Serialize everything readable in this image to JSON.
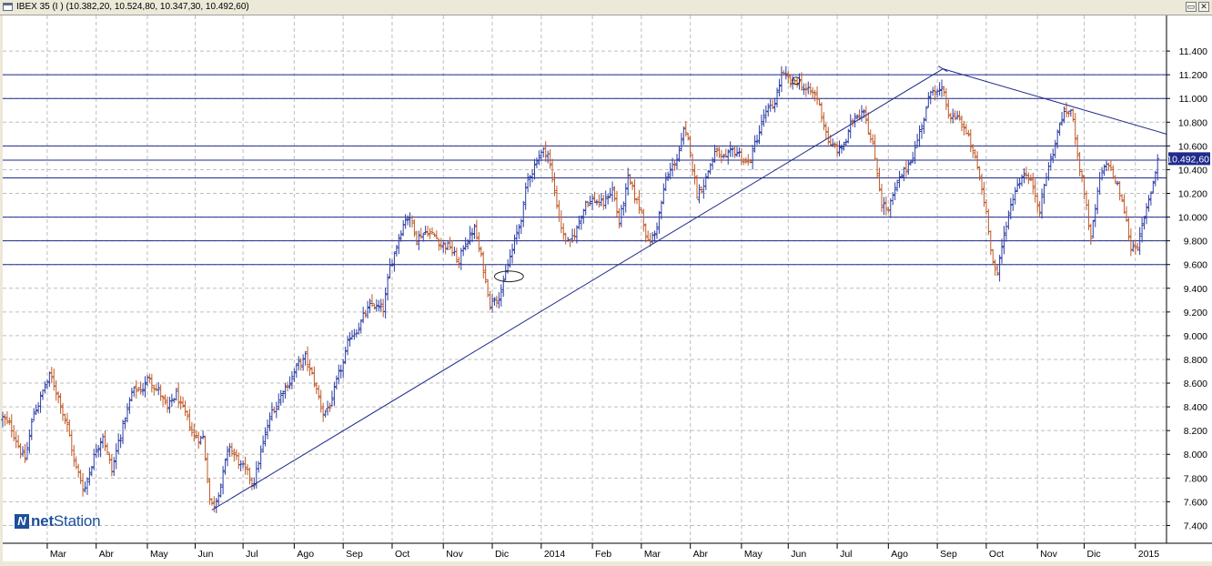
{
  "window": {
    "title": "IBEX 35 (I ) (10.382,20, 10.524,80, 10.347,30, 10.492,60)",
    "restore_glyph": "▭",
    "close_glyph": "✕"
  },
  "logo": {
    "prefix": "net",
    "suffix": "Station",
    "mark": "N"
  },
  "colors": {
    "up": "#2c3ea5",
    "down": "#c05a28",
    "line": "#1f2a8c",
    "grid": "#bdbdbd",
    "price_label_bg": "#1f2a8c"
  },
  "chart_data": {
    "type": "ohlc",
    "title": "IBEX 35 (I ) (10.382,20, 10.524,80, 10.347,30, 10.492,60)",
    "last_price": "10.492,60",
    "ylim": [
      7250,
      11700
    ],
    "y_ticks": [
      7400,
      7600,
      7800,
      8000,
      8200,
      8400,
      8600,
      8800,
      9000,
      9200,
      9400,
      9600,
      9800,
      10000,
      10200,
      10400,
      10600,
      10800,
      11000,
      11200,
      11400
    ],
    "y_tick_labels": [
      "7.400",
      "7.600",
      "7.800",
      "8.000",
      "8.200",
      "8.400",
      "8.600",
      "8.800",
      "9.000",
      "9.200",
      "9.400",
      "9.600",
      "9.800",
      "10.000",
      "10.200",
      "10.400",
      "10.600",
      "10.800",
      "11.000",
      "11.200",
      "11.400"
    ],
    "x_labels": [
      "Mar",
      "Abr",
      "May",
      "Jun",
      "Jul",
      "Ago",
      "Sep",
      "Oct",
      "Nov",
      "Dic",
      "2014",
      "Feb",
      "Mar",
      "Abr",
      "May",
      "Jun",
      "Jul",
      "Ago",
      "Sep",
      "Oct",
      "Nov",
      "Dic",
      "2015"
    ],
    "x_label_positions_week": [
      4.0,
      8.4,
      13.0,
      17.3,
      21.6,
      26.2,
      30.6,
      35.0,
      39.6,
      44.0,
      48.4,
      53.0,
      57.4,
      61.8,
      66.4,
      70.6,
      75.0,
      79.6,
      84.0,
      88.4,
      93.0,
      97.2,
      101.8
    ],
    "x_range_weeks": [
      0,
      104.6
    ],
    "horizontal_levels": [
      9600,
      9800,
      10000,
      10330,
      10480,
      10600,
      11000,
      11200
    ],
    "trendlines": [
      {
        "name": "support",
        "from": [
          18.8,
          7530
        ],
        "to": [
          84.5,
          11250
        ]
      },
      {
        "name": "resistance",
        "from": [
          84.5,
          11250
        ],
        "to": [
          104.6,
          10700
        ]
      }
    ],
    "annotations": [
      {
        "shape": "ellipse",
        "at": [
          45.5,
          9500
        ],
        "rx_weeks": 1.3,
        "ry_price": 45
      },
      {
        "shape": "ellipse",
        "at": [
          71.3,
          11150
        ],
        "rx_weeks": 0.35,
        "ry_price": 30
      }
    ],
    "anchors": [
      [
        0,
        8300
      ],
      [
        1.2,
        8150
      ],
      [
        2,
        7950
      ],
      [
        2.8,
        8350
      ],
      [
        3.5,
        8500
      ],
      [
        4.2,
        8650
      ],
      [
        5,
        8500
      ],
      [
        5.8,
        8250
      ],
      [
        6.5,
        7900
      ],
      [
        7.3,
        7700
      ],
      [
        8.2,
        8000
      ],
      [
        9,
        8200
      ],
      [
        9.8,
        7850
      ],
      [
        10.4,
        8100
      ],
      [
        11,
        8300
      ],
      [
        11.6,
        8500
      ],
      [
        12.4,
        8550
      ],
      [
        13.2,
        8650
      ],
      [
        14,
        8550
      ],
      [
        14.8,
        8350
      ],
      [
        15.6,
        8500
      ],
      [
        16.4,
        8300
      ],
      [
        17.2,
        8150
      ],
      [
        18,
        8150
      ],
      [
        18.6,
        7650
      ],
      [
        18.9,
        7550
      ],
      [
        19.5,
        7750
      ],
      [
        20.4,
        8050
      ],
      [
        21.4,
        7900
      ],
      [
        22,
        7800
      ],
      [
        22.5,
        7750
      ],
      [
        23.3,
        8050
      ],
      [
        24.2,
        8350
      ],
      [
        25.2,
        8550
      ],
      [
        26.2,
        8700
      ],
      [
        27.2,
        8800
      ],
      [
        28,
        8600
      ],
      [
        28.8,
        8350
      ],
      [
        29.6,
        8450
      ],
      [
        30.6,
        8750
      ],
      [
        31.3,
        9000
      ],
      [
        32.3,
        9150
      ],
      [
        33.3,
        9250
      ],
      [
        34.2,
        9200
      ],
      [
        34.8,
        9550
      ],
      [
        35.6,
        9850
      ],
      [
        36.3,
        10050
      ],
      [
        37.2,
        9850
      ],
      [
        38.2,
        9900
      ],
      [
        39.2,
        9800
      ],
      [
        40.2,
        9750
      ],
      [
        41,
        9600
      ],
      [
        41.6,
        9800
      ],
      [
        42.4,
        9900
      ],
      [
        43.2,
        9550
      ],
      [
        43.8,
        9300
      ],
      [
        44.4,
        9350
      ],
      [
        45,
        9450
      ],
      [
        45.6,
        9650
      ],
      [
        46.4,
        9900
      ],
      [
        47.2,
        10300
      ],
      [
        48.2,
        10550
      ],
      [
        49,
        10550
      ],
      [
        49.6,
        10200
      ],
      [
        50.4,
        9850
      ],
      [
        51,
        9750
      ],
      [
        51.6,
        9900
      ],
      [
        52.4,
        10150
      ],
      [
        53.2,
        10150
      ],
      [
        54,
        10100
      ],
      [
        54.8,
        10250
      ],
      [
        55.4,
        9950
      ],
      [
        56.2,
        10300
      ],
      [
        56.8,
        10150
      ],
      [
        57.4,
        10050
      ],
      [
        58,
        9800
      ],
      [
        58.6,
        9850
      ],
      [
        59.6,
        10300
      ],
      [
        60.4,
        10450
      ],
      [
        61.2,
        10700
      ],
      [
        61.8,
        10550
      ],
      [
        62.4,
        10200
      ],
      [
        63.2,
        10350
      ],
      [
        64,
        10550
      ],
      [
        65,
        10450
      ],
      [
        66,
        10550
      ],
      [
        67,
        10450
      ],
      [
        67.6,
        10600
      ],
      [
        68.4,
        10850
      ],
      [
        69.2,
        10900
      ],
      [
        70,
        11200
      ],
      [
        70.8,
        11100
      ],
      [
        71.6,
        11150
      ],
      [
        72.4,
        11050
      ],
      [
        73.2,
        11000
      ],
      [
        73.8,
        10800
      ],
      [
        74.4,
        10600
      ],
      [
        75.2,
        10550
      ],
      [
        75.8,
        10650
      ],
      [
        76.6,
        10850
      ],
      [
        77.4,
        10950
      ],
      [
        78.2,
        10600
      ],
      [
        79,
        10150
      ],
      [
        79.6,
        10050
      ],
      [
        80.4,
        10250
      ],
      [
        81.2,
        10400
      ],
      [
        82,
        10600
      ],
      [
        82.8,
        10850
      ],
      [
        83.6,
        11100
      ],
      [
        84.4,
        11050
      ],
      [
        85.2,
        10800
      ],
      [
        86,
        10850
      ],
      [
        86.8,
        10650
      ],
      [
        87.6,
        10400
      ],
      [
        88.4,
        10050
      ],
      [
        89,
        9650
      ],
      [
        89.4,
        9500
      ],
      [
        90.2,
        9950
      ],
      [
        91,
        10250
      ],
      [
        91.8,
        10400
      ],
      [
        92.6,
        10250
      ],
      [
        93.2,
        10100
      ],
      [
        93.8,
        10350
      ],
      [
        94.4,
        10550
      ],
      [
        95.2,
        10850
      ],
      [
        96,
        10900
      ],
      [
        96.8,
        10450
      ],
      [
        97.4,
        10100
      ],
      [
        97.8,
        9800
      ],
      [
        98.6,
        10300
      ],
      [
        99.4,
        10450
      ],
      [
        100.2,
        10250
      ],
      [
        100.8,
        10050
      ],
      [
        101.4,
        9750
      ],
      [
        102,
        9800
      ],
      [
        102.6,
        9950
      ],
      [
        103.2,
        10200
      ],
      [
        103.8,
        10490
      ]
    ]
  }
}
